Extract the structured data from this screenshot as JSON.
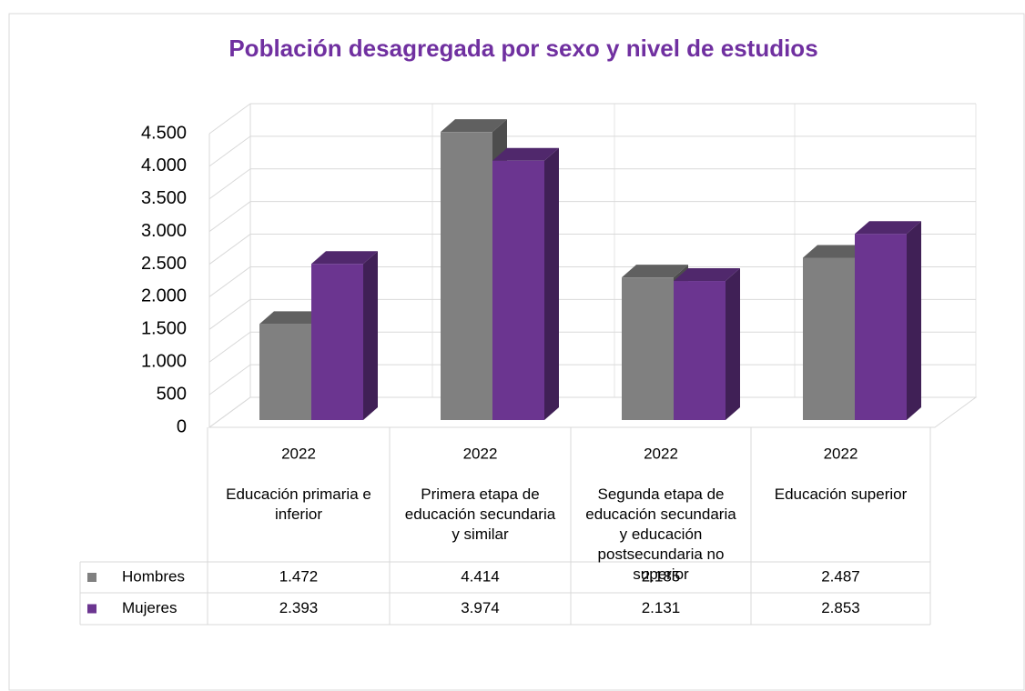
{
  "chart_data": {
    "type": "bar3d",
    "title": "Población desagregada por sexo y nivel de estudios",
    "category_years": [
      "2022",
      "2022",
      "2022",
      "2022"
    ],
    "categories": [
      "Educación primaria e inferior",
      "Primera etapa de educación secundaria y similar",
      "Segunda etapa de educación secundaria y educación postsecundaria no superior",
      "Educación superior"
    ],
    "series": [
      {
        "name": "Hombres",
        "color": "#808080",
        "values": [
          1472,
          4414,
          2185,
          2487
        ],
        "value_labels": [
          "1.472",
          "4.414",
          "2.185",
          "2.487"
        ]
      },
      {
        "name": "Mujeres",
        "color": "#6b3590",
        "values": [
          2393,
          3974,
          2131,
          2853
        ],
        "value_labels": [
          "2.393",
          "3.974",
          "2.131",
          "2.853"
        ]
      }
    ],
    "ylim": [
      0,
      4500
    ],
    "yticks": [
      0,
      500,
      {
        "value": 1000,
        "label": "1.000"
      },
      {
        "value": 1500,
        "label": "1.500"
      },
      {
        "value": 2000,
        "label": "2.000"
      },
      {
        "value": 2500,
        "label": "2.500"
      },
      {
        "value": 3000,
        "label": "3.000"
      },
      {
        "value": 3500,
        "label": "3.500"
      },
      {
        "value": 4000,
        "label": "4.000"
      },
      {
        "value": 4500,
        "label": "4.500"
      }
    ],
    "grid": true
  }
}
